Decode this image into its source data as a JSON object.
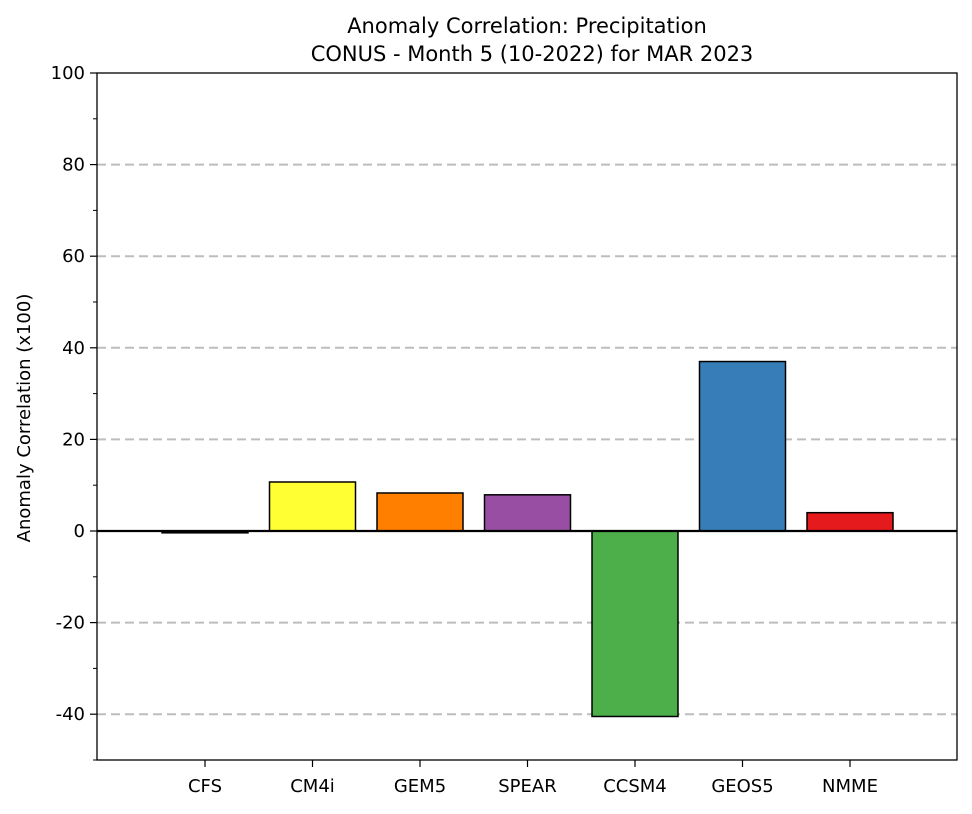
{
  "chart_data": {
    "type": "bar",
    "title_line1": "Anomaly Correlation: Precipitation",
    "title_line2": "CONUS - Month 5 (10-2022) for MAR 2023",
    "xlabel": "",
    "ylabel": "Anomaly Correlation (x100)",
    "ylim": [
      -50,
      100
    ],
    "yticks": [
      -40,
      -20,
      0,
      20,
      40,
      60,
      80,
      100
    ],
    "yticks_minor": [
      -50,
      -30,
      -10,
      10,
      30,
      50,
      70,
      90
    ],
    "yticklabels": [
      "-40",
      "-20",
      "0",
      "20",
      "40",
      "60",
      "80",
      "100"
    ],
    "gridlines": [
      -40,
      -20,
      20,
      40,
      60,
      80
    ],
    "grid": "dashed horizontal at major ticks",
    "categories": [
      "CFS",
      "CM4i",
      "GEM5",
      "SPEAR",
      "CCSM4",
      "GEOS5",
      "NMME"
    ],
    "values": [
      -0.4,
      10.7,
      8.3,
      7.9,
      -40.5,
      37.0,
      4.0
    ],
    "colors": [
      "#000000",
      "#ffff33",
      "#ff7f00",
      "#984ea3",
      "#4daf4a",
      "#377eb8",
      "#e41a1c"
    ]
  }
}
